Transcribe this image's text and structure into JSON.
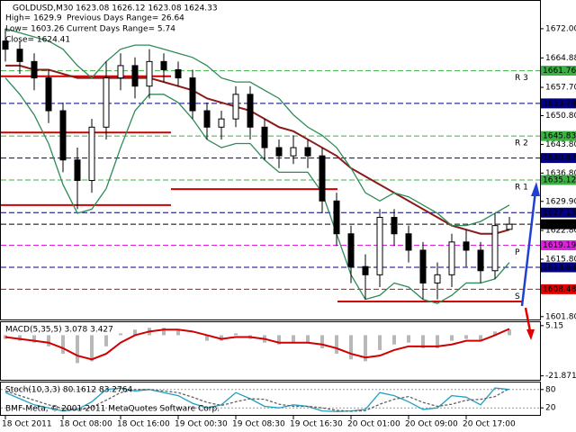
{
  "header": {
    "symbol_line": "GOLDUSD,M30  1623.08 1626.12 1623.08 1624.33",
    "high": "High= 1629.9",
    "prev_range": "Previous Days Range= 26.64",
    "low": "Low= 1603.26",
    "cur_range": "Current Days Range= 5.74",
    "close": "Close= 1624.41"
  },
  "footer": "BMF-Meta, © 2001-2011 MetaQuotes Software Corp.",
  "chart_data": [
    {
      "type": "candlestick",
      "categories": [
        "18 Oct 2011",
        null,
        null,
        null,
        "18 Oct 08:00",
        null,
        null,
        null,
        "18 Oct 16:00",
        null,
        null,
        null,
        "19 Oct 00:30",
        null,
        null,
        null,
        "19 Oct 08:30",
        null,
        null,
        null,
        "19 Oct 16:30",
        null,
        null,
        null,
        "20 Oct 01:00",
        null,
        null,
        null,
        "20 Oct 09:00",
        null,
        null,
        null,
        "20 Oct 17:00",
        null,
        null,
        null
      ],
      "open": [
        1669,
        1667,
        1664,
        1660,
        1652,
        1640,
        1635,
        1648,
        1660,
        1663,
        1658,
        1664,
        1662,
        1660,
        1652,
        1648,
        1650,
        1656,
        1648,
        1643,
        1641,
        1643,
        1641,
        1630,
        1622,
        1614,
        1612,
        1626,
        1622,
        1618,
        1610,
        1612,
        1620,
        1618,
        1613,
        1623.08
      ],
      "high": [
        1672,
        1669,
        1666,
        1662,
        1654,
        1643,
        1650,
        1664,
        1666,
        1665,
        1667,
        1666,
        1664,
        1662,
        1654,
        1652,
        1658,
        1658,
        1650,
        1645,
        1646,
        1645,
        1643,
        1632,
        1624,
        1617,
        1628,
        1628,
        1624,
        1620,
        1615,
        1622,
        1623,
        1620,
        1627,
        1626.12
      ],
      "low": [
        1664,
        1661,
        1657,
        1649,
        1637,
        1628,
        1632,
        1645,
        1657,
        1655,
        1655,
        1659,
        1658,
        1650,
        1645,
        1645,
        1648,
        1645,
        1640,
        1638,
        1639,
        1638,
        1627,
        1619,
        1610,
        1606,
        1609,
        1619,
        1615,
        1606,
        1606,
        1609,
        1614,
        1610,
        1611,
        1623.08
      ],
      "close": [
        1667,
        1664,
        1660,
        1652,
        1640,
        1635,
        1648,
        1660,
        1663,
        1658,
        1664,
        1662,
        1660,
        1652,
        1648,
        1650,
        1656,
        1648,
        1643,
        1641,
        1643,
        1641,
        1630,
        1622,
        1614,
        1612,
        1626,
        1622,
        1618,
        1610,
        1612,
        1620,
        1618,
        1613,
        1624,
        1624.33
      ],
      "series": [
        {
          "name": "ma",
          "color": "#8b1a1a",
          "values": [
            1663,
            1663,
            1662,
            1662,
            1661,
            1660,
            1660,
            1660,
            1660,
            1660,
            1660,
            1659,
            1658,
            1657,
            1655,
            1654,
            1653,
            1652,
            1650,
            1648,
            1647,
            1645,
            1643,
            1641,
            1638,
            1636,
            1634,
            1632,
            1630,
            1628,
            1626,
            1624,
            1623,
            1622,
            1622,
            1623
          ]
        },
        {
          "name": "upper",
          "color": "#2e8b57",
          "values": [
            1672,
            1671,
            1670,
            1669,
            1667,
            1663,
            1660,
            1664,
            1667,
            1668,
            1668,
            1667,
            1666,
            1665,
            1663,
            1660,
            1659,
            1659,
            1657,
            1655,
            1651,
            1648,
            1646,
            1643,
            1638,
            1632,
            1630,
            1632,
            1631,
            1629,
            1627,
            1624,
            1624,
            1625,
            1627,
            1629
          ]
        },
        {
          "name": "lower",
          "color": "#2e8b57",
          "values": [
            1660,
            1656,
            1651,
            1644,
            1634,
            1627,
            1628,
            1633,
            1643,
            1652,
            1656,
            1656,
            1654,
            1650,
            1645,
            1643,
            1644,
            1644,
            1640,
            1637,
            1637,
            1637,
            1632,
            1622,
            1612,
            1606,
            1607,
            1610,
            1609,
            1606,
            1605,
            1607,
            1610,
            1610,
            1611,
            1615
          ]
        }
      ],
      "day_lines": [
        [
          1660.4,
          1646.7,
          1629.0
        ],
        [
          1632.9
        ],
        [
          1605.5
        ]
      ],
      "levels": [
        {
          "value": 1661.76,
          "color": "#3cb043",
          "text_color": "#000000",
          "name": "R 3"
        },
        {
          "value": 1653.79,
          "color": "#000080",
          "text_color": "#ffffff"
        },
        {
          "value": 1645.83,
          "color": "#3cb043",
          "text_color": "#000000",
          "name": "R 2"
        },
        {
          "value": 1640.47,
          "color": "#000080",
          "text_color": "#ffffff"
        },
        {
          "value": 1635.12,
          "color": "#3cb043",
          "text_color": "#000000",
          "name": "R 1"
        },
        {
          "value": 1627.15,
          "color": "#000080",
          "text_color": "#ffffff"
        },
        {
          "value": 1624.33,
          "color": "#000000",
          "text_color": "#ffffff"
        },
        {
          "value": 1619.19,
          "color": "#e020e0",
          "text_color": "#ffffff",
          "name": "P"
        },
        {
          "value": 1613.83,
          "color": "#000080",
          "text_color": "#ffffff"
        },
        {
          "value": 1608.48,
          "color": "#e00000",
          "text_color": "#ffffff",
          "name": "S"
        }
      ],
      "ylim": [
        1601.1,
        1679.0
      ],
      "yticks": [
        {
          "value": 1672,
          "label": "1672.00"
        },
        {
          "value": 1664.88,
          "label": "1664.88"
        },
        {
          "value": 1657.7,
          "label": "1657.70"
        },
        {
          "value": 1650.8,
          "label": "1650.80"
        },
        {
          "value": 1643.8,
          "label": "1643.80"
        },
        {
          "value": 1636.8,
          "label": "1636.80"
        },
        {
          "value": 1629.9,
          "label": "1629.90"
        },
        {
          "value": 1622.8,
          "label": "1622.80"
        },
        {
          "value": 1615.8,
          "label": "1615.80"
        },
        {
          "value": 1601.8,
          "label": "1601.80"
        }
      ]
    },
    {
      "type": "macd",
      "title": "MACD(5,35,5) 3.078 3.427",
      "values": [
        -2,
        -3,
        -4,
        -6,
        -10,
        -15,
        -14,
        -6,
        1,
        3,
        4,
        4,
        3,
        0,
        -3,
        -3,
        1,
        -2,
        -4,
        -5,
        -4,
        -4,
        -7,
        -10,
        -13,
        -14,
        -8,
        -5,
        -4,
        -7,
        -7,
        -3,
        -2,
        -3,
        2,
        3.078
      ],
      "series": [
        {
          "name": "signal",
          "color": "#d00000",
          "values": [
            -1,
            -2,
            -3,
            -4,
            -7,
            -11,
            -13,
            -10,
            -4,
            0,
            2,
            3,
            3,
            2,
            0,
            -2,
            -1,
            -1,
            -2,
            -4,
            -4,
            -4,
            -5,
            -7,
            -10,
            -12,
            -11,
            -8,
            -6,
            -6,
            -6,
            -5,
            -3,
            -3,
            0,
            3.427
          ]
        }
      ],
      "color": "#b8b8b8",
      "ylim": [
        -24,
        7
      ],
      "yticks": [
        5.15,
        -21.871
      ]
    },
    {
      "type": "stoch",
      "title": "Stoch(10,3,3) 80.1612 83.2764",
      "series": [
        {
          "name": "main",
          "color": "#20a0c0",
          "values": [
            70,
            50,
            30,
            20,
            10,
            15,
            40,
            80,
            85,
            75,
            80,
            70,
            60,
            35,
            20,
            30,
            70,
            50,
            25,
            20,
            30,
            25,
            10,
            8,
            10,
            15,
            70,
            60,
            40,
            15,
            20,
            60,
            55,
            30,
            85,
            80.1612
          ]
        },
        {
          "name": "signal",
          "color": "#606060",
          "values": [
            75,
            60,
            45,
            30,
            18,
            14,
            22,
            45,
            70,
            80,
            80,
            75,
            70,
            55,
            38,
            28,
            40,
            50,
            48,
            32,
            25,
            25,
            20,
            12,
            9,
            11,
            32,
            48,
            57,
            38,
            25,
            32,
            45,
            48,
            57,
            83.2764
          ]
        }
      ],
      "ylim": [
        0,
        100
      ],
      "yticks": [
        80,
        20
      ]
    }
  ]
}
